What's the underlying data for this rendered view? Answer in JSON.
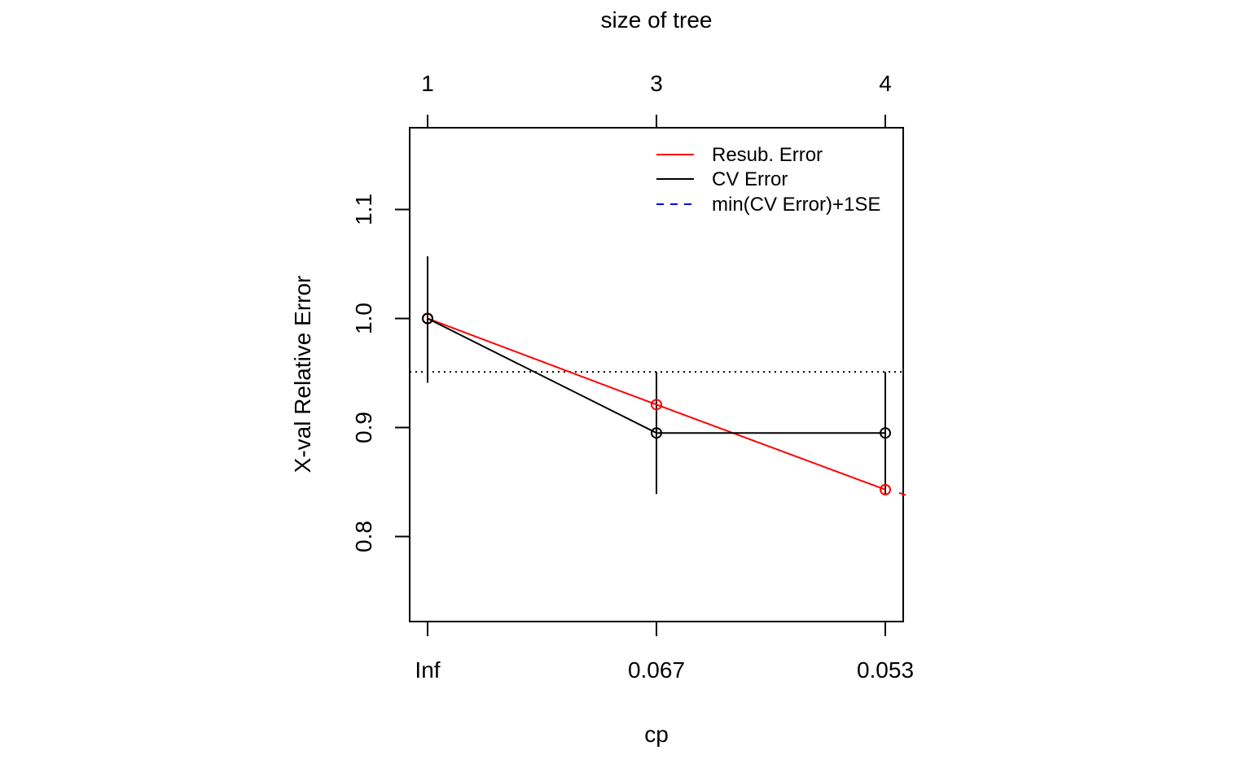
{
  "chart_data": {
    "type": "line",
    "top_axis": {
      "title": "size of tree",
      "tick_labels": [
        "1",
        "3",
        "4"
      ]
    },
    "xlabel": "cp",
    "x_tick_labels": [
      "Inf",
      "0.067",
      "0.053"
    ],
    "ylabel": "X-val Relative Error",
    "y_ticks": [
      0.8,
      0.9,
      1.0,
      1.1
    ],
    "y_tick_labels": [
      "0.8",
      "0.9",
      "1.0",
      "1.1"
    ],
    "ylim": [
      0.722,
      1.175
    ],
    "legend_position": "top-right",
    "legend": [
      {
        "label": "Resub. Error",
        "color": "#ff0000",
        "style": "solid"
      },
      {
        "label": "CV Error",
        "color": "#000000",
        "style": "solid"
      },
      {
        "label": "min(CV Error)+1SE",
        "color": "#0000ff",
        "style": "dashed"
      }
    ],
    "series": [
      {
        "name": "Resub. Error",
        "color": "#ff0000",
        "marker": "open-circle",
        "values": [
          1.0,
          0.921,
          0.843
        ]
      },
      {
        "name": "CV Error",
        "color": "#000000",
        "marker": "open-circle",
        "values": [
          1.0,
          0.895,
          0.895
        ],
        "upper": [
          1.057,
          0.951,
          0.951
        ],
        "lower": [
          0.941,
          0.839,
          0.839
        ]
      }
    ],
    "threshold": {
      "value": 0.951,
      "style": "dotted",
      "color": "#000000"
    },
    "extra_resub_segment_end": 0.838
  }
}
